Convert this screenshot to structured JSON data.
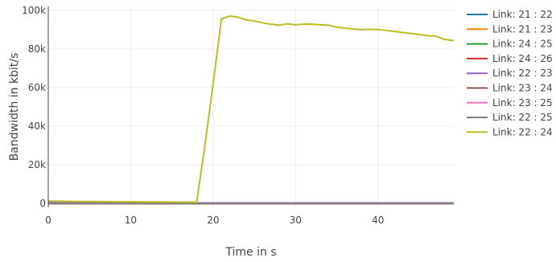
{
  "chart_data": {
    "type": "line",
    "title": "",
    "xlabel": "Time in s",
    "ylabel": "Bandwidth in kbit/s",
    "xlim": [
      0,
      49.2
    ],
    "ylim": [
      -2000,
      102000
    ],
    "x_ticks": [
      0,
      10,
      20,
      30,
      40
    ],
    "x_tick_labels": [
      "0",
      "10",
      "20",
      "30",
      "40"
    ],
    "y_ticks": [
      0,
      20000,
      40000,
      60000,
      80000,
      100000
    ],
    "y_tick_labels": [
      "0",
      "20k",
      "40k",
      "60k",
      "80k",
      "100k"
    ],
    "grid": true,
    "legend_position": "right",
    "series": [
      {
        "name": "Link: 21 : 22",
        "color": "#1f77b4",
        "x": [
          0,
          10,
          20,
          30,
          40,
          49.2
        ],
        "y": [
          0,
          0,
          0,
          0,
          0,
          0
        ]
      },
      {
        "name": "Link: 21 : 23",
        "color": "#ff7f0e",
        "x": [
          0,
          10,
          20,
          30,
          40,
          49.2
        ],
        "y": [
          0,
          0,
          0,
          0,
          0,
          0
        ]
      },
      {
        "name": "Link: 24 : 25",
        "color": "#2ca02c",
        "x": [
          0,
          10,
          20,
          30,
          40,
          49.2
        ],
        "y": [
          0,
          0,
          0,
          0,
          0,
          0
        ]
      },
      {
        "name": "Link: 24 : 26",
        "color": "#d62728",
        "x": [
          0,
          10,
          20,
          30,
          40,
          49.2
        ],
        "y": [
          0,
          0,
          0,
          0,
          0,
          0
        ]
      },
      {
        "name": "Link: 22 : 23",
        "color": "#9467bd",
        "x": [
          0,
          10,
          18,
          20,
          30,
          40,
          49.2
        ],
        "y": [
          500,
          400,
          300,
          300,
          300,
          300,
          300
        ]
      },
      {
        "name": "Link: 23 : 24",
        "color": "#8c564b",
        "x": [
          0,
          10,
          20,
          30,
          40,
          49.2
        ],
        "y": [
          0,
          0,
          0,
          0,
          0,
          0
        ]
      },
      {
        "name": "Link: 23 : 25",
        "color": "#e377c2",
        "x": [
          0,
          10,
          20,
          30,
          40,
          49.2
        ],
        "y": [
          0,
          0,
          0,
          0,
          0,
          0
        ]
      },
      {
        "name": "Link: 22 : 25",
        "color": "#7f7f7f",
        "x": [
          0,
          10,
          20,
          30,
          40,
          49.2
        ],
        "y": [
          0,
          0,
          0,
          0,
          0,
          0
        ]
      },
      {
        "name": "Link: 22 : 24",
        "color": "#bcbd22",
        "x": [
          0,
          2,
          4,
          6,
          8,
          10,
          12,
          14,
          16,
          18,
          19,
          20,
          21,
          22,
          23,
          24,
          25,
          26,
          27,
          28,
          29,
          30,
          31,
          32,
          33,
          34,
          35,
          36,
          37,
          38,
          39,
          40,
          41,
          42,
          43,
          44,
          45,
          46,
          47,
          48,
          49.2
        ],
        "y": [
          1200,
          1100,
          1000,
          1000,
          900,
          900,
          800,
          800,
          700,
          700,
          30000,
          62000,
          95500,
          97000,
          96500,
          95000,
          94500,
          93500,
          92800,
          92300,
          93000,
          92500,
          92800,
          92800,
          92500,
          92300,
          91200,
          90800,
          90300,
          90000,
          90200,
          90000,
          89600,
          89100,
          88500,
          88000,
          87500,
          86800,
          86700,
          85000,
          84300
        ]
      }
    ]
  }
}
